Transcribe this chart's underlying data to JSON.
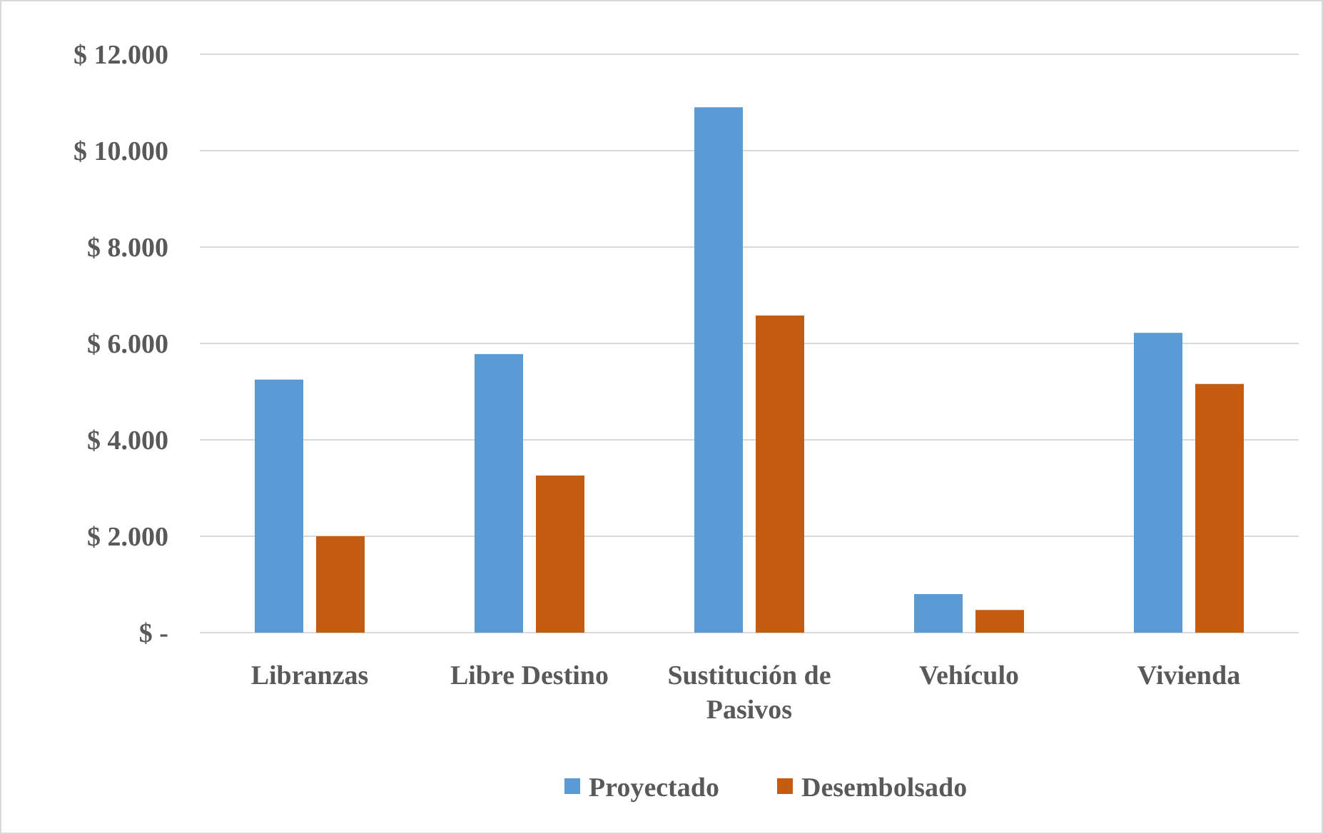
{
  "chart_data": {
    "type": "bar",
    "categories": [
      "Libranzas",
      "Libre Destino",
      "Sustitución de Pasivos",
      "Vehículo",
      "Vivienda"
    ],
    "series": [
      {
        "name": "Proyectado",
        "color": "#5b9bd5",
        "values": [
          5250,
          5780,
          10900,
          800,
          6220
        ]
      },
      {
        "name": "Desembolsado",
        "color": "#c55a11",
        "values": [
          2000,
          3260,
          6580,
          470,
          5160
        ]
      }
    ],
    "ylim": [
      0,
      12000
    ],
    "yticks": [
      {
        "value": 0,
        "label": "$ -"
      },
      {
        "value": 2000,
        "label": "$ 2.000"
      },
      {
        "value": 4000,
        "label": "$ 4.000"
      },
      {
        "value": 6000,
        "label": "$ 6.000"
      },
      {
        "value": 8000,
        "label": "$ 8.000"
      },
      {
        "value": 10000,
        "label": "$ 10.000"
      },
      {
        "value": 12000,
        "label": "$ 12.000"
      }
    ],
    "grid": "y",
    "legend": "bottom"
  }
}
